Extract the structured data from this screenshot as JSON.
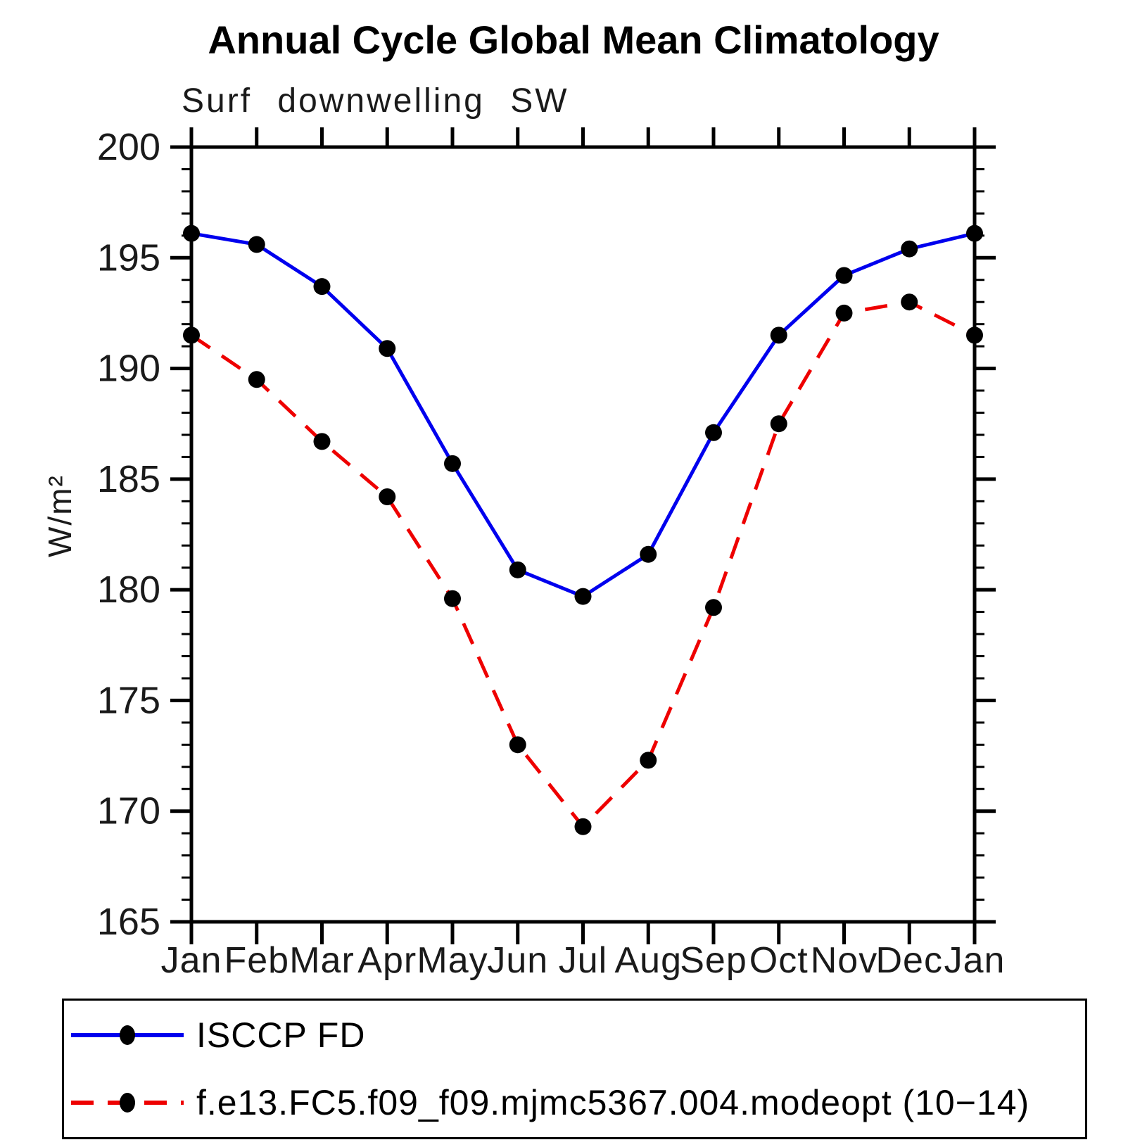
{
  "title": "Annual Cycle Global Mean Climatology",
  "subtitle": "Surf downwelling SW",
  "ylabel": "W/m²",
  "legend": {
    "items": [
      {
        "label": "ISCCP FD",
        "color": "#0000ee",
        "style": "solid"
      },
      {
        "label": "f.e13.FC5.f09_f09.mjmc5367.004.modeopt (10−14)",
        "color": "#ee0000",
        "style": "dashed"
      }
    ]
  },
  "chart_data": {
    "type": "line",
    "title": "Annual Cycle Global Mean Climatology",
    "subtitle": "Surf downwelling SW",
    "xlabel": "",
    "ylabel": "W/m²",
    "categories": [
      "Jan",
      "Feb",
      "Mar",
      "Apr",
      "May",
      "Jun",
      "Jul",
      "Aug",
      "Sep",
      "Oct",
      "Nov",
      "Dec",
      "Jan"
    ],
    "ylim": [
      165,
      200
    ],
    "ytick_major_step": 5,
    "ytick_minor_step": 1,
    "grid": false,
    "legend_position": "bottom",
    "marker": "filled-black-circle",
    "series": [
      {
        "name": "ISCCP FD",
        "color": "#0000ee",
        "dash": "solid",
        "values": [
          196.1,
          195.6,
          193.7,
          190.9,
          185.7,
          180.9,
          179.7,
          181.6,
          187.1,
          191.5,
          194.2,
          195.4,
          196.1
        ]
      },
      {
        "name": "f.e13.FC5.f09_f09.mjmc5367.004.modeopt (10−14)",
        "color": "#ee0000",
        "dash": "dashed",
        "values": [
          191.5,
          189.5,
          186.7,
          184.2,
          179.6,
          173.0,
          169.3,
          172.3,
          179.2,
          187.5,
          192.5,
          193.0,
          191.5
        ]
      }
    ]
  }
}
